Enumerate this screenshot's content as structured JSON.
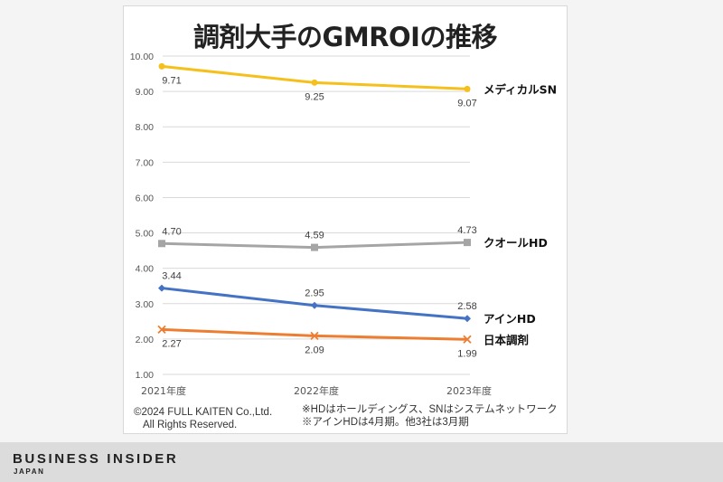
{
  "chart_data": {
    "type": "line",
    "title": "調剤大手のGMROIの推移",
    "categories": [
      "2021年度",
      "2022年度",
      "2023年度"
    ],
    "ylim": [
      1.0,
      10.0
    ],
    "yticks": [
      "1.00",
      "2.00",
      "3.00",
      "4.00",
      "5.00",
      "6.00",
      "7.00",
      "8.00",
      "9.00",
      "10.00"
    ],
    "grid": true,
    "series": [
      {
        "name": "メディカルSN",
        "color": "#f5c01b",
        "marker": "circle",
        "label_pos": "below",
        "values": [
          9.71,
          9.25,
          9.07
        ],
        "labels": [
          "9.71",
          "9.25",
          "9.07"
        ]
      },
      {
        "name": "クオールHD",
        "color": "#a5a5a5",
        "marker": "square",
        "label_pos": "above",
        "values": [
          4.7,
          4.59,
          4.73
        ],
        "labels": [
          "4.70",
          "4.59",
          "4.73"
        ]
      },
      {
        "name": "アインHD",
        "color": "#4472c4",
        "marker": "diamond",
        "label_pos": "above",
        "values": [
          3.44,
          2.95,
          2.58
        ],
        "labels": [
          "3.44",
          "2.95",
          "2.58"
        ]
      },
      {
        "name": "日本調剤",
        "color": "#ed7d31",
        "marker": "x",
        "label_pos": "below",
        "values": [
          2.27,
          2.09,
          1.99
        ],
        "labels": [
          "2.27",
          "2.09",
          "1.99"
        ]
      }
    ]
  },
  "footer": {
    "copyright_line1": "©2024 FULL KAITEN Co.,Ltd.",
    "copyright_line2": "All Rights Reserved.",
    "note1": "※HDはホールディングス、SNはシステムネットワーク",
    "note2": "※アインHDは4月期。他3社は3月期"
  },
  "brand": {
    "name": "BUSINESS INSIDER",
    "sub": "JAPAN"
  }
}
